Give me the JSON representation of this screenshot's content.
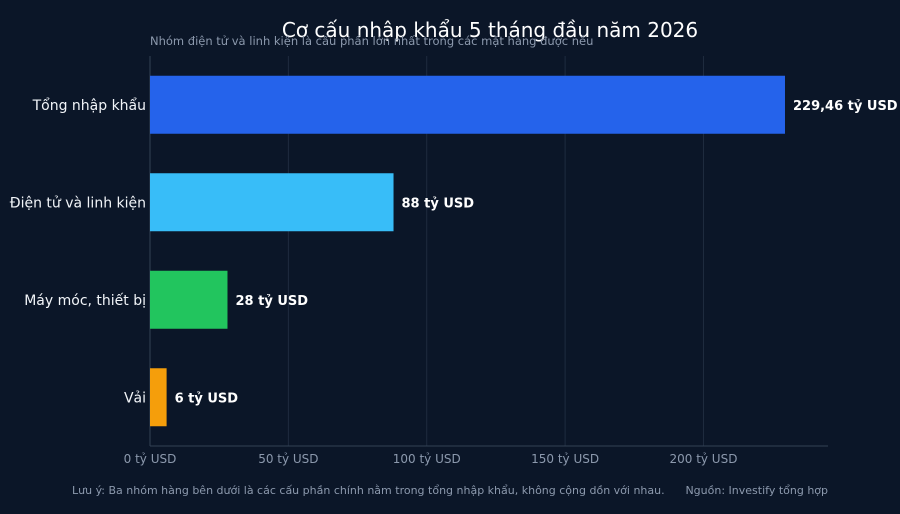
{
  "chart_data": {
    "type": "bar",
    "orientation": "horizontal",
    "title": "Cơ cấu nhập khẩu 5 tháng đầu năm 2026",
    "subtitle": "Nhóm điện tử và linh kiện là cấu phần lớn nhất trong các mặt hàng được nêu",
    "categories": [
      "Tổng nhập khẩu",
      "Điện tử và linh kiện",
      "Máy móc, thiết bị",
      "Vải"
    ],
    "values": [
      229.46,
      88,
      28,
      6
    ],
    "value_labels": [
      "229,46 tỷ USD",
      "88 tỷ USD",
      "28 tỷ USD",
      "6 tỷ USD"
    ],
    "colors": [
      "#2563eb",
      "#38bdf8",
      "#22c55e",
      "#f59e0b"
    ],
    "xlim": [
      0,
      245
    ],
    "xticks": [
      0,
      50,
      100,
      150,
      200
    ],
    "xtick_labels": [
      "0 tỷ USD",
      "50 tỷ USD",
      "100 tỷ USD",
      "150 tỷ USD",
      "200 tỷ USD"
    ],
    "xlabel": "",
    "ylabel": "",
    "grid": "vertical",
    "legend": "none"
  },
  "footer": {
    "note": "Lưu ý: Ba nhóm hàng bên dưới là các cấu phần chính nằm trong tổng nhập khẩu, không cộng dồn với nhau.",
    "source": "Nguồn: Investify tổng hợp"
  },
  "theme": {
    "background": "#0b1628"
  }
}
